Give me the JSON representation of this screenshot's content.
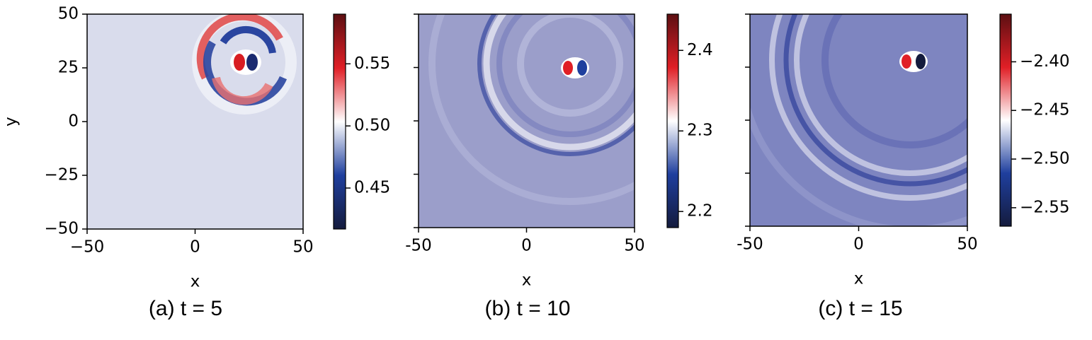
{
  "chart_data": [
    {
      "type": "heatmap",
      "caption": "(a) t = 5",
      "xlabel": "x",
      "ylabel": "y",
      "xlim": [
        -50,
        50
      ],
      "ylim": [
        -50,
        50
      ],
      "xticks": [
        {
          "value": -50,
          "label": "−50"
        },
        0,
        50
      ],
      "yticks": [
        {
          "value": -50,
          "label": "−50"
        },
        {
          "value": -25,
          "label": "−25"
        },
        0,
        25,
        50
      ],
      "show_ytick_labels": true,
      "background": "#d9dcec",
      "colormap": [
        "#141b3d",
        "#1f3f9e",
        "#ffffff",
        "#e01f26",
        "#5c0f12"
      ],
      "colorbar": {
        "lim": [
          0.417,
          0.59
        ],
        "ticks": [
          0.45,
          {
            "value": 0.5,
            "label": "0.50"
          },
          0.55
        ]
      }
    },
    {
      "type": "heatmap",
      "caption": "(b) t = 10",
      "xlabel": "x",
      "xlim": [
        -50,
        50
      ],
      "ylim": [
        -50,
        50
      ],
      "xticks": [
        -50,
        0,
        50
      ],
      "yticks": [
        -50,
        -25,
        0,
        25,
        50
      ],
      "show_ytick_labels": false,
      "background": "#9b9eca",
      "colormap": [
        "#141b3d",
        "#1f3f9e",
        "#ffffff",
        "#e01f26",
        "#5c0f12"
      ],
      "colorbar": {
        "lim": [
          2.18,
          2.445
        ],
        "ticks": [
          2.2,
          2.3,
          2.4
        ]
      }
    },
    {
      "type": "heatmap",
      "caption": "(c) t = 15",
      "xlabel": "x",
      "xlim": [
        -50,
        50
      ],
      "ylim": [
        -50,
        50
      ],
      "xticks": [
        -50,
        0,
        50
      ],
      "yticks": [
        -50,
        -25,
        0,
        25,
        50
      ],
      "show_ytick_labels": false,
      "background": "#7e85c0",
      "colormap": [
        "#141b3d",
        "#1f3f9e",
        "#ffffff",
        "#e01f26",
        "#5c0f12"
      ],
      "colorbar": {
        "lim": [
          -2.569,
          -2.351
        ],
        "ticks": [
          {
            "value": -2.55,
            "label": "−2.55"
          },
          {
            "value": -2.5,
            "label": "−2.50"
          },
          {
            "value": -2.45,
            "label": "−2.45"
          },
          {
            "value": -2.4,
            "label": "−2.40"
          }
        ]
      }
    }
  ]
}
